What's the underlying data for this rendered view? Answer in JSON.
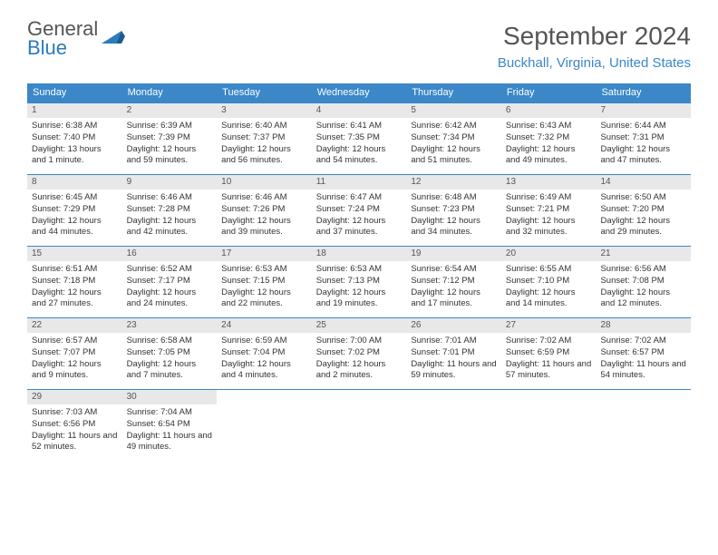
{
  "logo": {
    "line1": "General",
    "line2": "Blue"
  },
  "title": "September 2024",
  "location": "Buckhall, Virginia, United States",
  "colors": {
    "accent": "#3b87c8",
    "header_text": "#555555",
    "daynum_bg": "#e8e8e8",
    "body_text": "#333333"
  },
  "day_labels": [
    "Sunday",
    "Monday",
    "Tuesday",
    "Wednesday",
    "Thursday",
    "Friday",
    "Saturday"
  ],
  "weeks": [
    [
      {
        "n": "1",
        "sr": "Sunrise: 6:38 AM",
        "ss": "Sunset: 7:40 PM",
        "dl": "Daylight: 13 hours and 1 minute."
      },
      {
        "n": "2",
        "sr": "Sunrise: 6:39 AM",
        "ss": "Sunset: 7:39 PM",
        "dl": "Daylight: 12 hours and 59 minutes."
      },
      {
        "n": "3",
        "sr": "Sunrise: 6:40 AM",
        "ss": "Sunset: 7:37 PM",
        "dl": "Daylight: 12 hours and 56 minutes."
      },
      {
        "n": "4",
        "sr": "Sunrise: 6:41 AM",
        "ss": "Sunset: 7:35 PM",
        "dl": "Daylight: 12 hours and 54 minutes."
      },
      {
        "n": "5",
        "sr": "Sunrise: 6:42 AM",
        "ss": "Sunset: 7:34 PM",
        "dl": "Daylight: 12 hours and 51 minutes."
      },
      {
        "n": "6",
        "sr": "Sunrise: 6:43 AM",
        "ss": "Sunset: 7:32 PM",
        "dl": "Daylight: 12 hours and 49 minutes."
      },
      {
        "n": "7",
        "sr": "Sunrise: 6:44 AM",
        "ss": "Sunset: 7:31 PM",
        "dl": "Daylight: 12 hours and 47 minutes."
      }
    ],
    [
      {
        "n": "8",
        "sr": "Sunrise: 6:45 AM",
        "ss": "Sunset: 7:29 PM",
        "dl": "Daylight: 12 hours and 44 minutes."
      },
      {
        "n": "9",
        "sr": "Sunrise: 6:46 AM",
        "ss": "Sunset: 7:28 PM",
        "dl": "Daylight: 12 hours and 42 minutes."
      },
      {
        "n": "10",
        "sr": "Sunrise: 6:46 AM",
        "ss": "Sunset: 7:26 PM",
        "dl": "Daylight: 12 hours and 39 minutes."
      },
      {
        "n": "11",
        "sr": "Sunrise: 6:47 AM",
        "ss": "Sunset: 7:24 PM",
        "dl": "Daylight: 12 hours and 37 minutes."
      },
      {
        "n": "12",
        "sr": "Sunrise: 6:48 AM",
        "ss": "Sunset: 7:23 PM",
        "dl": "Daylight: 12 hours and 34 minutes."
      },
      {
        "n": "13",
        "sr": "Sunrise: 6:49 AM",
        "ss": "Sunset: 7:21 PM",
        "dl": "Daylight: 12 hours and 32 minutes."
      },
      {
        "n": "14",
        "sr": "Sunrise: 6:50 AM",
        "ss": "Sunset: 7:20 PM",
        "dl": "Daylight: 12 hours and 29 minutes."
      }
    ],
    [
      {
        "n": "15",
        "sr": "Sunrise: 6:51 AM",
        "ss": "Sunset: 7:18 PM",
        "dl": "Daylight: 12 hours and 27 minutes."
      },
      {
        "n": "16",
        "sr": "Sunrise: 6:52 AM",
        "ss": "Sunset: 7:17 PM",
        "dl": "Daylight: 12 hours and 24 minutes."
      },
      {
        "n": "17",
        "sr": "Sunrise: 6:53 AM",
        "ss": "Sunset: 7:15 PM",
        "dl": "Daylight: 12 hours and 22 minutes."
      },
      {
        "n": "18",
        "sr": "Sunrise: 6:53 AM",
        "ss": "Sunset: 7:13 PM",
        "dl": "Daylight: 12 hours and 19 minutes."
      },
      {
        "n": "19",
        "sr": "Sunrise: 6:54 AM",
        "ss": "Sunset: 7:12 PM",
        "dl": "Daylight: 12 hours and 17 minutes."
      },
      {
        "n": "20",
        "sr": "Sunrise: 6:55 AM",
        "ss": "Sunset: 7:10 PM",
        "dl": "Daylight: 12 hours and 14 minutes."
      },
      {
        "n": "21",
        "sr": "Sunrise: 6:56 AM",
        "ss": "Sunset: 7:08 PM",
        "dl": "Daylight: 12 hours and 12 minutes."
      }
    ],
    [
      {
        "n": "22",
        "sr": "Sunrise: 6:57 AM",
        "ss": "Sunset: 7:07 PM",
        "dl": "Daylight: 12 hours and 9 minutes."
      },
      {
        "n": "23",
        "sr": "Sunrise: 6:58 AM",
        "ss": "Sunset: 7:05 PM",
        "dl": "Daylight: 12 hours and 7 minutes."
      },
      {
        "n": "24",
        "sr": "Sunrise: 6:59 AM",
        "ss": "Sunset: 7:04 PM",
        "dl": "Daylight: 12 hours and 4 minutes."
      },
      {
        "n": "25",
        "sr": "Sunrise: 7:00 AM",
        "ss": "Sunset: 7:02 PM",
        "dl": "Daylight: 12 hours and 2 minutes."
      },
      {
        "n": "26",
        "sr": "Sunrise: 7:01 AM",
        "ss": "Sunset: 7:01 PM",
        "dl": "Daylight: 11 hours and 59 minutes."
      },
      {
        "n": "27",
        "sr": "Sunrise: 7:02 AM",
        "ss": "Sunset: 6:59 PM",
        "dl": "Daylight: 11 hours and 57 minutes."
      },
      {
        "n": "28",
        "sr": "Sunrise: 7:02 AM",
        "ss": "Sunset: 6:57 PM",
        "dl": "Daylight: 11 hours and 54 minutes."
      }
    ],
    [
      {
        "n": "29",
        "sr": "Sunrise: 7:03 AM",
        "ss": "Sunset: 6:56 PM",
        "dl": "Daylight: 11 hours and 52 minutes."
      },
      {
        "n": "30",
        "sr": "Sunrise: 7:04 AM",
        "ss": "Sunset: 6:54 PM",
        "dl": "Daylight: 11 hours and 49 minutes."
      },
      null,
      null,
      null,
      null,
      null
    ]
  ]
}
